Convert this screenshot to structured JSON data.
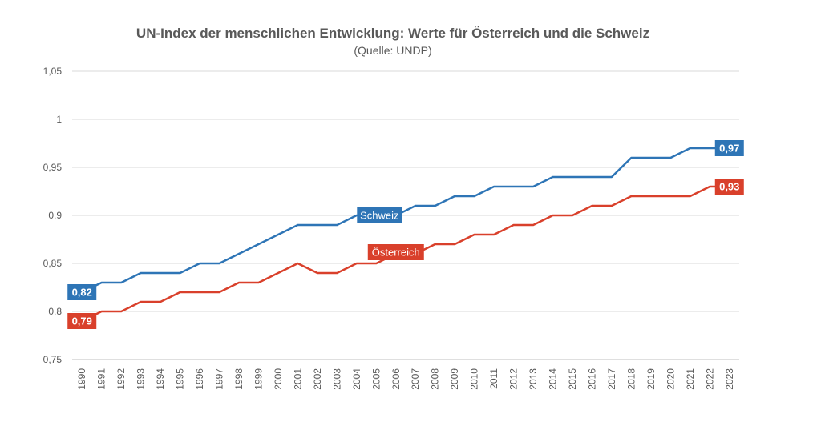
{
  "chart_data": {
    "type": "line",
    "title": "UN-Index der menschlichen Entwicklung: Werte für Österreich und die Schweiz",
    "subtitle": "(Quelle: UNDP)",
    "x": [
      "1990",
      "1991",
      "1992",
      "1993",
      "1994",
      "1995",
      "1996",
      "1997",
      "1998",
      "1999",
      "2000",
      "2001",
      "2002",
      "2003",
      "2004",
      "2005",
      "2006",
      "2007",
      "2008",
      "2009",
      "2010",
      "2011",
      "2012",
      "2013",
      "2014",
      "2015",
      "2016",
      "2017",
      "2018",
      "2019",
      "2020",
      "2021",
      "2022",
      "2023"
    ],
    "yticks": [
      "0,75",
      "0,8",
      "0,85",
      "0,9",
      "0,95",
      "1",
      "1,05"
    ],
    "ylim": [
      0.75,
      1.05
    ],
    "grid": true,
    "legend": "none",
    "series": [
      {
        "name": "Schweiz",
        "color": "#2e75b6",
        "values": [
          0.82,
          0.83,
          0.83,
          0.84,
          0.84,
          0.84,
          0.85,
          0.85,
          0.86,
          0.87,
          0.88,
          0.89,
          0.89,
          0.89,
          0.9,
          0.9,
          0.9,
          0.91,
          0.91,
          0.92,
          0.92,
          0.93,
          0.93,
          0.93,
          0.94,
          0.94,
          0.94,
          0.94,
          0.96,
          0.96,
          0.96,
          0.97,
          0.97,
          0.97
        ],
        "start_label": "0,82",
        "end_label": "0,97"
      },
      {
        "name": "Österreich",
        "color": "#d9402b",
        "values": [
          0.79,
          0.8,
          0.8,
          0.81,
          0.81,
          0.82,
          0.82,
          0.82,
          0.83,
          0.83,
          0.84,
          0.85,
          0.84,
          0.84,
          0.85,
          0.85,
          0.86,
          0.86,
          0.87,
          0.87,
          0.88,
          0.88,
          0.89,
          0.89,
          0.9,
          0.9,
          0.91,
          0.91,
          0.92,
          0.92,
          0.92,
          0.92,
          0.93,
          0.93
        ],
        "start_label": "0,79",
        "end_label": "0,93"
      }
    ]
  }
}
